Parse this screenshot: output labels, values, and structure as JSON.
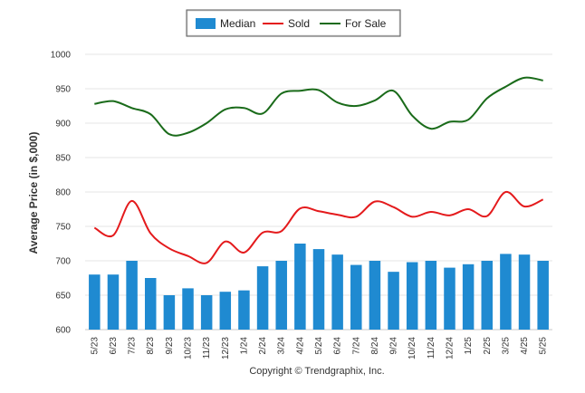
{
  "chart_data": {
    "type": "bar",
    "ylabel": "Average Price (in $,000)",
    "ylim": [
      600,
      1000
    ],
    "yticks": [
      600,
      650,
      700,
      750,
      800,
      850,
      900,
      950,
      1000
    ],
    "grid": true,
    "legend_placement": "top-center",
    "categories": [
      "5/23",
      "6/23",
      "7/23",
      "8/23",
      "9/23",
      "10/23",
      "11/23",
      "12/23",
      "1/24",
      "2/24",
      "3/24",
      "4/24",
      "5/24",
      "6/24",
      "7/24",
      "8/24",
      "9/24",
      "10/24",
      "11/24",
      "12/24",
      "1/25",
      "2/25",
      "3/25",
      "4/25",
      "5/25"
    ],
    "series": [
      {
        "name": "Median",
        "kind": "bar",
        "color": "#1f8ad1",
        "values": [
          680,
          680,
          700,
          675,
          650,
          660,
          650,
          655,
          657,
          692,
          700,
          725,
          717,
          709,
          694,
          700,
          684,
          698,
          700,
          690,
          695,
          700,
          710,
          709,
          700
        ]
      },
      {
        "name": "Sold",
        "kind": "line",
        "color": "#e41a1c",
        "values": [
          748,
          737,
          787,
          740,
          718,
          707,
          697,
          728,
          712,
          741,
          743,
          776,
          772,
          767,
          764,
          786,
          778,
          764,
          771,
          766,
          775,
          765,
          800,
          779,
          789
        ]
      },
      {
        "name": "For Sale",
        "kind": "line",
        "color": "#1a6b1a",
        "values": [
          928,
          932,
          922,
          913,
          884,
          886,
          900,
          920,
          922,
          914,
          943,
          947,
          948,
          930,
          925,
          933,
          947,
          911,
          892,
          902,
          905,
          936,
          953,
          966,
          962
        ]
      }
    ]
  },
  "legend": {
    "items": [
      {
        "label": "Median",
        "color": "#1f8ad1",
        "shape": "bar"
      },
      {
        "label": "Sold",
        "color": "#e41a1c",
        "shape": "line"
      },
      {
        "label": "For Sale",
        "color": "#1a6b1a",
        "shape": "line"
      }
    ]
  },
  "footer": {
    "copyright": "Copyright © Trendgraphix, Inc."
  }
}
